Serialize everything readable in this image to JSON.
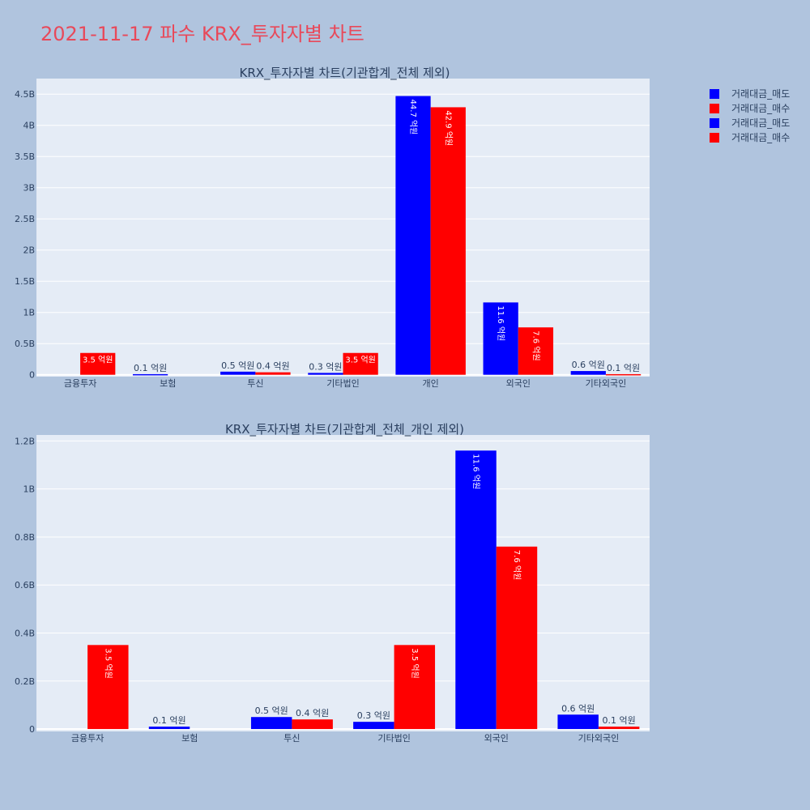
{
  "title": "2021-11-17 파수 KRX_투자자별 차트",
  "colors": {
    "background": "#b0c4de",
    "plot_bg": "#e5ecf6",
    "title": "#e8495a",
    "sell": "#0000ff",
    "buy": "#ff0000",
    "text": "#2a3f5f"
  },
  "legend": [
    {
      "name": "거래대금_매도",
      "color": "#0000ff"
    },
    {
      "name": "거래대금_매수",
      "color": "#ff0000"
    },
    {
      "name": "거래대금_매도",
      "color": "#0000ff"
    },
    {
      "name": "거래대금_매수",
      "color": "#ff0000"
    }
  ],
  "chart_data": [
    {
      "type": "bar",
      "title": "KRX_투자자별 차트(기관합계_전체 제외)",
      "categories": [
        "금융투자",
        "보험",
        "투신",
        "기타법인",
        "개인",
        "외국인",
        "기타외국인"
      ],
      "series": [
        {
          "name": "거래대금_매도",
          "color": "#0000ff",
          "values": [
            0,
            0.01,
            0.05,
            0.03,
            4.47,
            1.16,
            0.06
          ],
          "labels": [
            "",
            "0.1 억원",
            "0.5 억원",
            "0.3 억원",
            "44.7 억원",
            "11.6 억원",
            "0.6 억원"
          ]
        },
        {
          "name": "거래대금_매수",
          "color": "#ff0000",
          "values": [
            0.35,
            0,
            0.04,
            0.35,
            4.29,
            0.76,
            0.01
          ],
          "labels": [
            "3.5 억원",
            "",
            "0.4 억원",
            "3.5 억원",
            "42.9 억원",
            "7.6 억원",
            "0.1 억원"
          ]
        }
      ],
      "yunit": "B",
      "yticks": [
        0,
        0.5,
        1,
        1.5,
        2,
        2.5,
        3,
        3.5,
        4,
        4.5
      ],
      "ytick_labels": [
        "0",
        "0.5B",
        "1B",
        "1.5B",
        "2B",
        "2.5B",
        "3B",
        "3.5B",
        "4B",
        "4.5B"
      ],
      "ylim": [
        -0.03,
        4.75
      ]
    },
    {
      "type": "bar",
      "title": "KRX_투자자별 차트(기관합계_전체_개인 제외)",
      "categories": [
        "금융투자",
        "보험",
        "투신",
        "기타법인",
        "외국인",
        "기타외국인"
      ],
      "series": [
        {
          "name": "거래대금_매도",
          "color": "#0000ff",
          "values": [
            0,
            0.01,
            0.05,
            0.03,
            1.16,
            0.06
          ],
          "labels": [
            "",
            "0.1 억원",
            "0.5 억원",
            "0.3 억원",
            "11.6 억원",
            "0.6 억원"
          ]
        },
        {
          "name": "거래대금_매수",
          "color": "#ff0000",
          "values": [
            0.35,
            0,
            0.04,
            0.35,
            0.76,
            0.01
          ],
          "labels": [
            "3.5 억원",
            "",
            "0.4 억원",
            "3.5 억원",
            "7.6 억원",
            "0.1 억원"
          ]
        }
      ],
      "yunit": "B",
      "yticks": [
        0,
        0.2,
        0.4,
        0.6,
        0.8,
        1.0,
        1.2
      ],
      "ytick_labels": [
        "0",
        "0.2B",
        "0.4B",
        "0.6B",
        "0.8B",
        "1B",
        "1.2B"
      ],
      "ylim": [
        -0.01,
        1.225
      ]
    }
  ]
}
